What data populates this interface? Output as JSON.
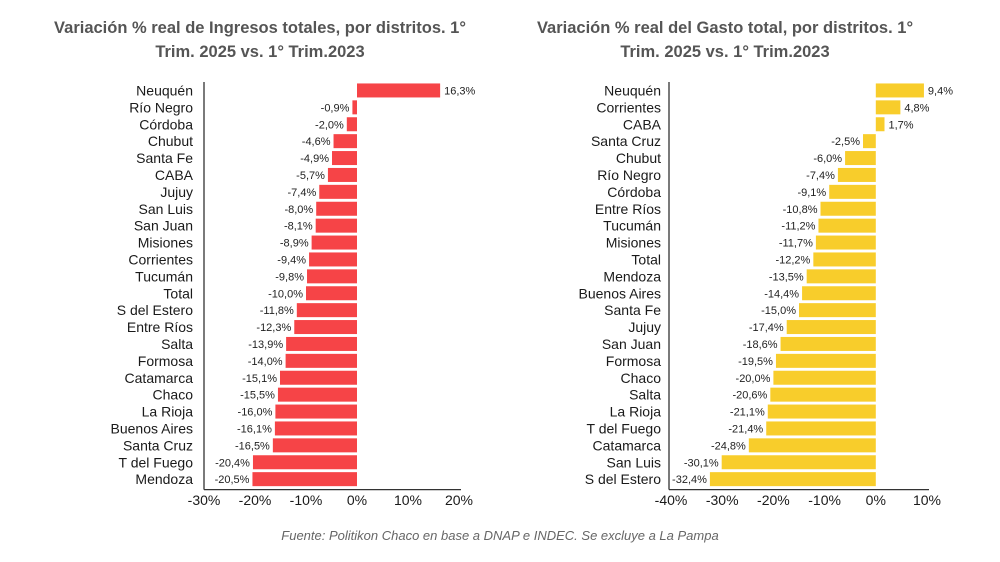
{
  "source_note": "Fuente: Politikon Chaco en base a DNAP e INDEC. Se excluye a La Pampa",
  "chart_data": [
    {
      "type": "bar",
      "orientation": "horizontal",
      "title": "Variación % real de Ingresos totales, por distritos. 1° Trim. 2025 vs. 1° Trim.2023",
      "color": "#f64447",
      "xlim": [
        -30,
        20
      ],
      "xticks": [
        -30,
        -20,
        -10,
        0,
        10,
        20
      ],
      "xtick_labels": [
        "-30%",
        "-20%",
        "-10%",
        "0%",
        "10%",
        "20%"
      ],
      "grid": false,
      "categories": [
        "Neuquén",
        "Río Negro",
        "Córdoba",
        "Chubut",
        "Santa Fe",
        "CABA",
        "Jujuy",
        "San Luis",
        "San Juan",
        "Misiones",
        "Corrientes",
        "Tucumán",
        "Total",
        "S del Estero",
        "Entre Ríos",
        "Salta",
        "Formosa",
        "Catamarca",
        "Chaco",
        "La Rioja",
        "Buenos Aires",
        "Santa Cruz",
        "T del Fuego",
        "Mendoza"
      ],
      "values": [
        16.3,
        -0.9,
        -2.0,
        -4.6,
        -4.9,
        -5.7,
        -7.4,
        -8.0,
        -8.1,
        -8.9,
        -9.4,
        -9.8,
        -10.0,
        -11.8,
        -12.3,
        -13.9,
        -14.0,
        -15.1,
        -15.5,
        -16.0,
        -16.1,
        -16.5,
        -20.4,
        -20.5
      ],
      "data_labels": [
        "16,3%",
        "-0,9%",
        "-2,0%",
        "-4,6%",
        "-4,9%",
        "-5,7%",
        "-7,4%",
        "-8,0%",
        "-8,1%",
        "-8,9%",
        "-9,4%",
        "-9,8%",
        "-10,0%",
        "-11,8%",
        "-12,3%",
        "-13,9%",
        "-14,0%",
        "-15,1%",
        "-15,5%",
        "-16,0%",
        "-16,1%",
        "-16,5%",
        "-20,4%",
        "-20,5%"
      ]
    },
    {
      "type": "bar",
      "orientation": "horizontal",
      "title": "Variación % real del Gasto total, por distritos. 1° Trim. 2025 vs. 1° Trim.2023",
      "color": "#f8cd2b",
      "xlim": [
        -40,
        10
      ],
      "xticks": [
        -40,
        -30,
        -20,
        -10,
        0,
        10
      ],
      "xtick_labels": [
        "-40%",
        "-30%",
        "-20%",
        "-10%",
        "0%",
        "10%"
      ],
      "grid": false,
      "categories": [
        "Neuquén",
        "Corrientes",
        "CABA",
        "Santa Cruz",
        "Chubut",
        "Río Negro",
        "Córdoba",
        "Entre Ríos",
        "Tucumán",
        "Misiones",
        "Total",
        "Mendoza",
        "Buenos Aires",
        "Santa Fe",
        "Jujuy",
        "San Juan",
        "Formosa",
        "Chaco",
        "Salta",
        "La Rioja",
        "T del Fuego",
        "Catamarca",
        "San Luis",
        "S del Estero"
      ],
      "values": [
        9.4,
        4.8,
        1.7,
        -2.5,
        -6.0,
        -7.4,
        -9.1,
        -10.8,
        -11.2,
        -11.7,
        -12.2,
        -13.5,
        -14.4,
        -15.0,
        -17.4,
        -18.6,
        -19.5,
        -20.0,
        -20.6,
        -21.1,
        -21.4,
        -24.8,
        -30.1,
        -32.4
      ],
      "data_labels": [
        "9,4%",
        "4,8%",
        "1,7%",
        "-2,5%",
        "-6,0%",
        "-7,4%",
        "-9,1%",
        "-10,8%",
        "-11,2%",
        "-11,7%",
        "-12,2%",
        "-13,5%",
        "-14,4%",
        "-15,0%",
        "-17,4%",
        "-18,6%",
        "-19,5%",
        "-20,0%",
        "-20,6%",
        "-21,1%",
        "-21,4%",
        "-24,8%",
        "-30,1%",
        "-32,4%"
      ]
    }
  ]
}
